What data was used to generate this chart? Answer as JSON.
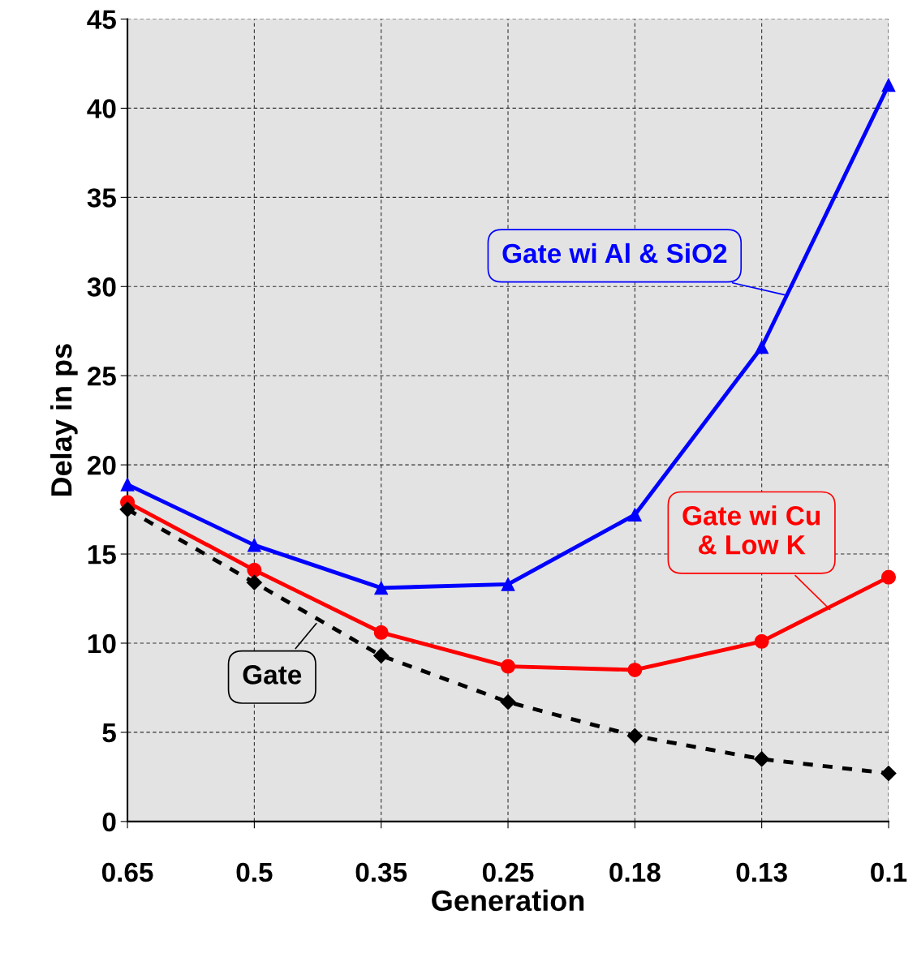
{
  "chart_data": {
    "type": "line",
    "xlabel": "Generation",
    "ylabel": "Delay in ps",
    "categories": [
      "0.65",
      "0.5",
      "0.35",
      "0.25",
      "0.18",
      "0.13",
      "0.1"
    ],
    "series": [
      {
        "name": "Gate wi Al & SiO2",
        "color": "#0000ff",
        "marker": "triangle",
        "line_style": "solid",
        "values": [
          18.9,
          15.5,
          13.1,
          13.3,
          17.2,
          26.6,
          41.3
        ]
      },
      {
        "name": "Gate wi Cu\n& Low K",
        "color": "#ff0000",
        "marker": "circle",
        "line_style": "solid",
        "values": [
          17.9,
          14.1,
          10.6,
          8.7,
          8.5,
          10.1,
          13.7
        ]
      },
      {
        "name": "Gate",
        "color": "#000000",
        "marker": "diamond",
        "line_style": "dashed",
        "values": [
          17.5,
          13.4,
          9.3,
          6.7,
          4.8,
          3.5,
          2.7
        ]
      }
    ],
    "ylim": [
      0,
      45
    ],
    "yticks": [
      0,
      5,
      10,
      15,
      20,
      25,
      30,
      35,
      40,
      45
    ],
    "grid": true
  }
}
